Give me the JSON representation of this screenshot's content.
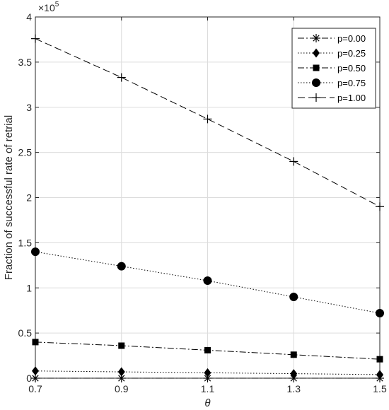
{
  "chart_data": {
    "type": "line",
    "title": "",
    "xlabel": "θ",
    "ylabel": "Fraction of successful rate of retrial",
    "y_multiplier_label": "×10",
    "y_multiplier_exponent": "5",
    "x": [
      0.7,
      0.9,
      1.1,
      1.3,
      1.5
    ],
    "xlim": [
      0.7,
      1.5
    ],
    "ylim": [
      0,
      4
    ],
    "x_ticks": [
      "0.7",
      "0.9",
      "1.1",
      "1.3",
      "1.5"
    ],
    "y_ticks": [
      "0",
      "0.5",
      "1",
      "1.5",
      "2",
      "2.5",
      "3",
      "3.5",
      "4"
    ],
    "grid": true,
    "legend_position": "top-right",
    "series": [
      {
        "name": "p=0.00",
        "marker": "asterisk",
        "line_style": "dashdot",
        "values": [
          0.0,
          0.0,
          0.0,
          0.0,
          0.0
        ]
      },
      {
        "name": "p=0.25",
        "marker": "diamond",
        "line_style": "dotted",
        "values": [
          0.08,
          0.07,
          0.06,
          0.05,
          0.04
        ]
      },
      {
        "name": "p=0.50",
        "marker": "square",
        "line_style": "dashdot",
        "values": [
          0.4,
          0.36,
          0.31,
          0.26,
          0.21
        ]
      },
      {
        "name": "p=0.75",
        "marker": "circle",
        "line_style": "dotted",
        "values": [
          1.4,
          1.24,
          1.08,
          0.9,
          0.72
        ]
      },
      {
        "name": "p=1.00",
        "marker": "plus",
        "line_style": "dashed",
        "values": [
          3.76,
          3.33,
          2.87,
          2.4,
          1.9
        ]
      }
    ]
  }
}
